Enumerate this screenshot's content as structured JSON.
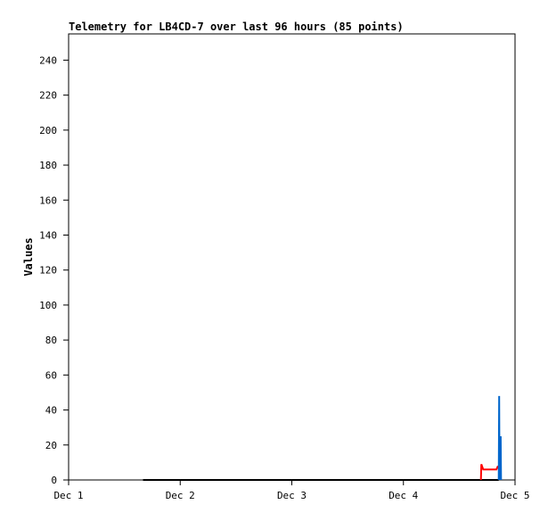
{
  "chart_data": {
    "type": "line",
    "title": "Telemetry for LB4CD-7 over last 96 hours (85 points)",
    "xlabel": "",
    "ylabel": "Values",
    "xlim": [
      "2023-12-01T00:00",
      "2023-12-05T00:00"
    ],
    "ylim": [
      0,
      255
    ],
    "x_ticks": [
      "Dec 1",
      "Dec 2",
      "Dec 3",
      "Dec 4",
      "Dec 5"
    ],
    "y_ticks": [
      0,
      20,
      40,
      60,
      80,
      100,
      120,
      140,
      160,
      180,
      200,
      220,
      240
    ],
    "grid": false,
    "series": [
      {
        "color": "#000000",
        "points": [
          [
            "2023-12-01T16:00",
            0
          ],
          [
            "2023-12-04T20:30",
            0
          ]
        ]
      },
      {
        "color": "#ff0000",
        "points": [
          [
            "2023-12-04T16:40",
            0
          ],
          [
            "2023-12-04T16:45",
            9
          ],
          [
            "2023-12-04T17:10",
            6
          ],
          [
            "2023-12-04T20:00",
            6
          ],
          [
            "2023-12-04T20:20",
            8
          ]
        ]
      },
      {
        "color": "#0066cc",
        "points": [
          [
            "2023-12-04T20:30",
            0
          ],
          [
            "2023-12-04T20:35",
            48
          ],
          [
            "2023-12-04T20:40",
            0
          ],
          [
            "2023-12-04T20:55",
            25
          ],
          [
            "2023-12-04T21:00",
            0
          ]
        ]
      }
    ]
  }
}
